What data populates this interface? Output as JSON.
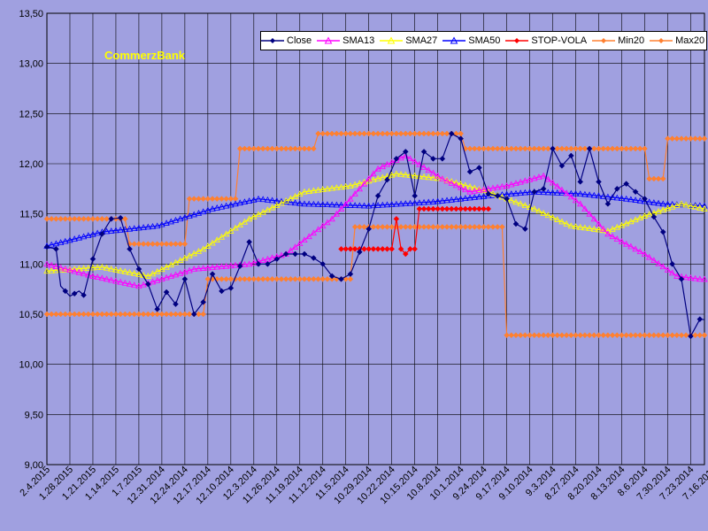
{
  "chart_data": {
    "type": "line",
    "title": "",
    "annotation": "CommerzBank",
    "xlabel": "",
    "ylabel": "",
    "ylim": [
      9.0,
      13.5
    ],
    "yticks": [
      "9,00",
      "9,50",
      "10,00",
      "10,50",
      "11,00",
      "11,50",
      "12,00",
      "12,50",
      "13,00",
      "13,50"
    ],
    "xtick_labels": [
      "2.4.2015",
      "1.28.2015",
      "1.21.2015",
      "1.14.2015",
      "1.7.2015",
      "12.31.2014",
      "12.24.2014",
      "12.17.2014",
      "12.10.2014",
      "12.3.2014",
      "11.26.2014",
      "11.19.2014",
      "11.12.2014",
      "11.5.2014",
      "10.29.2014",
      "10.22.2014",
      "10.15.2014",
      "10.8.2014",
      "10.1.2014",
      "9.24.2014",
      "9.17.2014",
      "9.10.2014",
      "9.3.2014",
      "8.27.2014",
      "8.20.2014",
      "8.13.2014",
      "8.6.2014",
      "7.30.2014",
      "7.23.2014",
      "7.16.2014"
    ],
    "n_points": 144,
    "x_direction": "dates descending left to right",
    "grid": true,
    "legend_position": "top-right",
    "series": [
      {
        "name": "Close",
        "color": "#000080",
        "marker": "diamond",
        "points": [
          [
            0,
            11.17
          ],
          [
            2,
            11.15
          ],
          [
            3,
            10.78
          ],
          [
            5,
            10.68
          ],
          [
            7,
            10.73
          ],
          [
            8,
            10.69
          ],
          [
            10,
            11.05
          ],
          [
            12,
            11.3
          ],
          [
            14,
            11.45
          ],
          [
            16,
            11.46
          ],
          [
            18,
            11.15
          ],
          [
            20,
            10.95
          ],
          [
            22,
            10.8
          ],
          [
            24,
            10.55
          ],
          [
            26,
            10.72
          ],
          [
            28,
            10.6
          ],
          [
            30,
            10.85
          ],
          [
            32,
            10.5
          ],
          [
            34,
            10.62
          ],
          [
            36,
            10.9
          ],
          [
            38,
            10.73
          ],
          [
            40,
            10.76
          ],
          [
            42,
            10.98
          ],
          [
            44,
            11.22
          ],
          [
            46,
            11.0
          ],
          [
            48,
            11.0
          ],
          [
            50,
            11.05
          ],
          [
            52,
            11.1
          ],
          [
            54,
            11.1
          ],
          [
            56,
            11.1
          ],
          [
            58,
            11.06
          ],
          [
            60,
            11.0
          ],
          [
            62,
            10.88
          ],
          [
            64,
            10.85
          ],
          [
            66,
            10.9
          ],
          [
            68,
            11.12
          ],
          [
            70,
            11.35
          ],
          [
            72,
            11.68
          ],
          [
            74,
            11.84
          ],
          [
            76,
            12.05
          ],
          [
            78,
            12.12
          ],
          [
            80,
            11.68
          ],
          [
            82,
            12.12
          ],
          [
            84,
            12.05
          ],
          [
            86,
            12.05
          ],
          [
            88,
            12.3
          ],
          [
            90,
            12.25
          ],
          [
            92,
            11.92
          ],
          [
            94,
            11.96
          ],
          [
            96,
            11.7
          ],
          [
            98,
            11.68
          ],
          [
            100,
            11.65
          ],
          [
            102,
            11.4
          ],
          [
            104,
            11.35
          ],
          [
            106,
            11.72
          ],
          [
            108,
            11.75
          ],
          [
            110,
            12.15
          ],
          [
            112,
            11.98
          ],
          [
            114,
            12.08
          ],
          [
            116,
            11.82
          ],
          [
            118,
            12.15
          ],
          [
            120,
            11.82
          ],
          [
            122,
            11.6
          ],
          [
            124,
            11.75
          ],
          [
            126,
            11.8
          ],
          [
            128,
            11.72
          ],
          [
            130,
            11.65
          ],
          [
            132,
            11.47
          ],
          [
            134,
            11.32
          ],
          [
            136,
            11.0
          ],
          [
            138,
            10.85
          ],
          [
            140,
            10.28
          ],
          [
            142,
            10.45
          ]
        ]
      },
      {
        "name": "SMA13",
        "color": "#ff00ff",
        "marker": "triangle"
      },
      {
        "name": "SMA27",
        "color": "#ffff00",
        "marker": "triangle"
      },
      {
        "name": "SMA50",
        "color": "#0000ff",
        "marker": "triangle"
      },
      {
        "name": "STOP-VOLA",
        "color": "#ff0000",
        "marker": "diamond"
      },
      {
        "name": "Min20",
        "color": "#ff8030",
        "marker": "diamond"
      },
      {
        "name": "Max20",
        "color": "#ff8030",
        "marker": "diamond"
      }
    ],
    "legend_entries": [
      "Close",
      "SMA13",
      "SMA27",
      "SMA50",
      "STOP-VOLA",
      "Min20",
      "Max20"
    ],
    "colors": {
      "plot_bg": "#a0a0e0",
      "legend_bg": "#ffffff",
      "annotation": "#ffff00"
    }
  }
}
